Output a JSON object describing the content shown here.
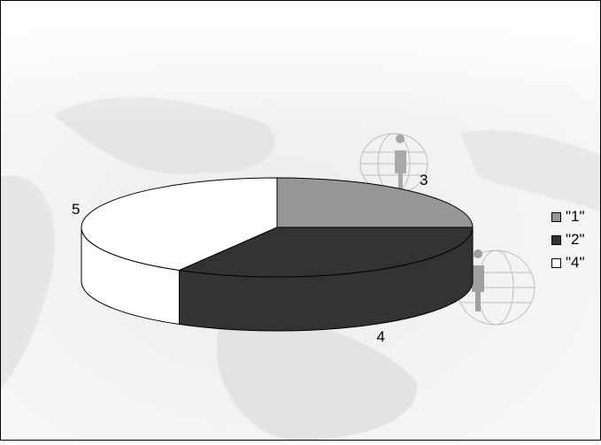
{
  "chart_data": {
    "type": "pie",
    "title": "",
    "categories": [
      "\"1\"",
      "\"2\"",
      "\"4\""
    ],
    "values": [
      3,
      4,
      5
    ],
    "data_labels": [
      "3",
      "4",
      "5"
    ],
    "colors": [
      "#969696",
      "#333333",
      "#ffffff"
    ],
    "style": "3d-pie",
    "legend_position": "right",
    "background": "faded world map with globe figures"
  }
}
